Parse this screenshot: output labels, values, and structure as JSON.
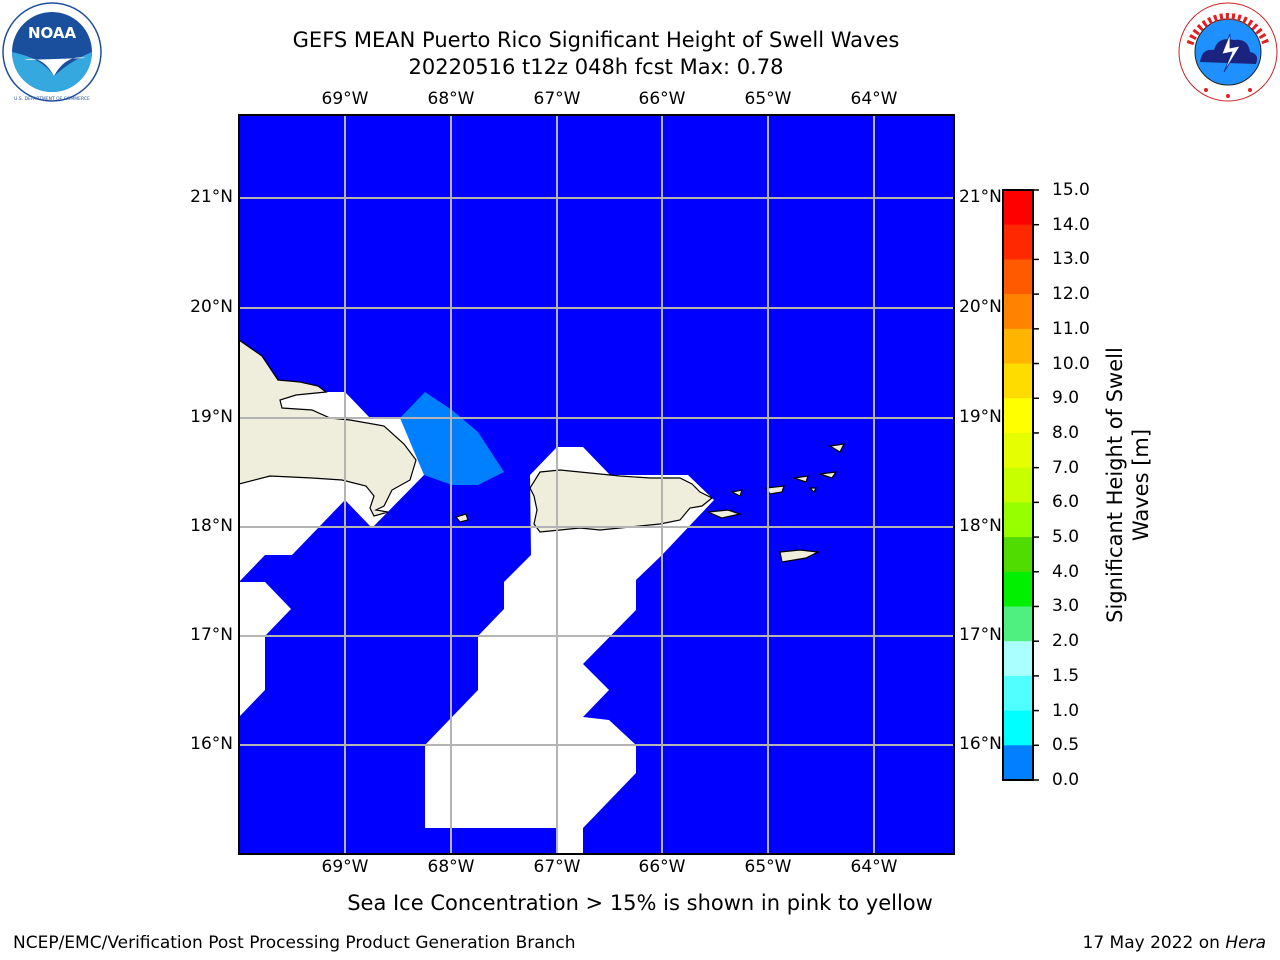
{
  "title": {
    "line1": "GEFS MEAN Puerto Rico Significant Height of Swell Waves",
    "line2": "20220516 t12z 048h fcst   Max: 0.78"
  },
  "logos": {
    "left": {
      "text": "NOAA",
      "ring_text": "NATIONAL OCEANIC AND ATMOSPHERIC ADMINISTRATION · U.S. DEPARTMENT OF COMMERCE"
    },
    "right": {
      "ring_text": "NATIONAL WEATHER SERVICE"
    }
  },
  "map": {
    "lon_ticks": [
      "69°W",
      "68°W",
      "67°W",
      "66°W",
      "65°W",
      "64°W"
    ],
    "lat_ticks": [
      "21°N",
      "20°N",
      "19°N",
      "18°N",
      "17°N",
      "16°N"
    ],
    "colors": {
      "ocean": "#0000ff",
      "swell_05": "#0080ff",
      "land": "#efeedd",
      "grid": "#b4b4b4"
    }
  },
  "colorbar": {
    "label_line1": "Significant Height of Swell",
    "label_line2": "Waves [m]",
    "ticks": [
      "15.0",
      "14.0",
      "13.0",
      "12.0",
      "11.0",
      "10.0",
      "9.0",
      "8.0",
      "7.0",
      "6.0",
      "5.0",
      "4.0",
      "3.0",
      "2.0",
      "1.5",
      "1.0",
      "0.5",
      "0.0"
    ],
    "colors": [
      "#ff0000",
      "#ff2800",
      "#ff5a00",
      "#ff8200",
      "#ffb400",
      "#ffdc00",
      "#ffff00",
      "#e6ff00",
      "#c8ff00",
      "#96ff00",
      "#50dc00",
      "#00f000",
      "#50f080",
      "#aaffff",
      "#50ffff",
      "#00ffff",
      "#0080ff",
      "#0000ff"
    ]
  },
  "note": "Sea Ice Concentration > 15% is shown in pink to yellow",
  "footer": {
    "left": "NCEP/EMC/Verification Post Processing Product Generation Branch",
    "right_prefix": "17 May 2022 on ",
    "right_machine": "Hera"
  }
}
